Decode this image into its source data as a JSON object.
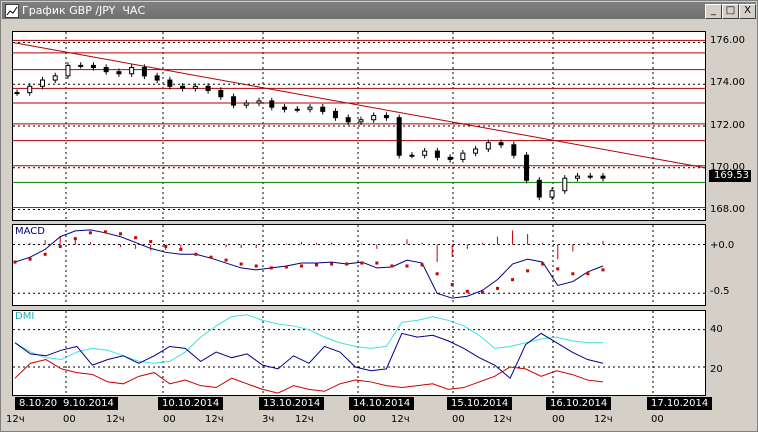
{
  "window": {
    "title": "График GBP /JPY  ЧАС",
    "buttons": {
      "minimize": "_",
      "maximize": "□",
      "close": "X"
    }
  },
  "price_panel": {
    "y_labels": [
      "176.00",
      "174.00",
      "172.00",
      "170.00",
      "168.00"
    ],
    "current_price": "169.53"
  },
  "macd_panel": {
    "label": "MACD",
    "y_labels": [
      "+0.0",
      "-0.5"
    ]
  },
  "dmi_panel": {
    "label": "DMI",
    "y_labels": [
      "40",
      "20"
    ]
  },
  "time_axis": {
    "dates": [
      "8.10.20",
      "9.10.2014",
      "10.10.2014",
      "13.10.2014",
      "14.10.2014",
      "15.10.2014",
      "16.10.2014",
      "17.10.2014"
    ],
    "hours": [
      "12ч",
      "00",
      "12ч",
      "00",
      "12ч",
      "3ч",
      "12ч",
      "00",
      "12ч",
      "00",
      "12ч",
      "00",
      "12ч",
      "00"
    ]
  },
  "colors": {
    "candle": "#000000",
    "support_red": "#b00000",
    "support_green": "#008000",
    "macd_line": "#000080",
    "signal": "#cc0000",
    "dmi_plus": "#00008b",
    "dmi_minus": "#cc0000",
    "adx": "#40e0e0"
  },
  "chart_data": [
    {
      "type": "candlestick",
      "title": "График GBP /JPY  ЧАС",
      "ylim": [
        167.5,
        176.5
      ],
      "y_ticks": [
        176.0,
        174.0,
        172.0,
        170.0,
        168.0
      ],
      "close": [
        173.6,
        173.9,
        174.2,
        174.4,
        174.9,
        174.9,
        174.8,
        174.6,
        174.5,
        174.8,
        174.4,
        174.2,
        173.9,
        173.8,
        173.9,
        173.7,
        173.4,
        173.0,
        173.1,
        173.2,
        172.9,
        172.8,
        172.8,
        172.9,
        172.7,
        172.4,
        172.2,
        172.3,
        172.5,
        172.4,
        170.6,
        170.6,
        170.8,
        170.5,
        170.4,
        170.7,
        170.9,
        171.2,
        171.1,
        170.6,
        169.4,
        168.6,
        168.9,
        169.5,
        169.6,
        169.6,
        169.5
      ],
      "horizontal_lines_red": [
        176.1,
        175.5,
        174.7,
        173.8,
        173.1,
        172.1,
        171.3,
        170.1
      ],
      "horizontal_lines_green": [
        169.3,
        168.1
      ],
      "trendline": {
        "from": 176.0,
        "to": 170.0
      }
    },
    {
      "type": "line",
      "title": "MACD",
      "ylim": [
        -0.62,
        0.2
      ],
      "y_ticks": [
        0.0,
        -0.5
      ],
      "series": [
        {
          "name": "MACD",
          "values": [
            -0.18,
            -0.13,
            -0.05,
            0.08,
            0.14,
            0.15,
            0.12,
            0.08,
            0.02,
            -0.04,
            -0.08,
            -0.1,
            -0.1,
            -0.14,
            -0.19,
            -0.24,
            -0.26,
            -0.24,
            -0.22,
            -0.19,
            -0.19,
            -0.18,
            -0.2,
            -0.18,
            -0.24,
            -0.23,
            -0.16,
            -0.19,
            -0.5,
            -0.55,
            -0.53,
            -0.47,
            -0.36,
            -0.2,
            -0.15,
            -0.18,
            -0.42,
            -0.38,
            -0.28,
            -0.22
          ]
        },
        {
          "name": "Signal",
          "values": [
            -0.18,
            -0.15,
            -0.1,
            -0.02,
            0.06,
            0.12,
            0.13,
            0.11,
            0.07,
            0.03,
            -0.02,
            -0.05,
            -0.1,
            -0.13,
            -0.16,
            -0.2,
            -0.22,
            -0.24,
            -0.23,
            -0.22,
            -0.21,
            -0.2,
            -0.2,
            -0.19,
            -0.19,
            -0.22,
            -0.22,
            -0.21,
            -0.3,
            -0.41,
            -0.48,
            -0.49,
            -0.45,
            -0.36,
            -0.27,
            -0.2,
            -0.25,
            -0.3,
            -0.3,
            -0.26
          ]
        }
      ]
    },
    {
      "type": "line",
      "title": "DMI",
      "ylim": [
        5,
        50
      ],
      "y_ticks": [
        40,
        20
      ],
      "series": [
        {
          "name": "ADX",
          "values": [
            33,
            28,
            25,
            24,
            28,
            30,
            29,
            26,
            23,
            22,
            23,
            28,
            36,
            42,
            47,
            48,
            45,
            43,
            42,
            40,
            36,
            33,
            31,
            30,
            31,
            44,
            45,
            47,
            45,
            42,
            37,
            30,
            31,
            33,
            35,
            36,
            34,
            33,
            33
          ]
        },
        {
          "name": "+DI",
          "values": [
            33,
            27,
            26,
            29,
            31,
            21,
            24,
            26,
            22,
            26,
            31,
            30,
            23,
            28,
            25,
            27,
            21,
            19,
            26,
            22,
            31,
            28,
            20,
            18,
            19,
            38,
            36,
            37,
            34,
            30,
            25,
            21,
            14,
            32,
            38,
            33,
            28,
            24,
            22
          ]
        },
        {
          "name": "-DI",
          "values": [
            14,
            22,
            24,
            19,
            17,
            16,
            12,
            11,
            15,
            17,
            11,
            13,
            10,
            9,
            14,
            11,
            8,
            6,
            10,
            8,
            7,
            11,
            13,
            12,
            10,
            9,
            10,
            11,
            8,
            9,
            12,
            15,
            20,
            19,
            15,
            18,
            16,
            13,
            12
          ]
        }
      ]
    }
  ]
}
